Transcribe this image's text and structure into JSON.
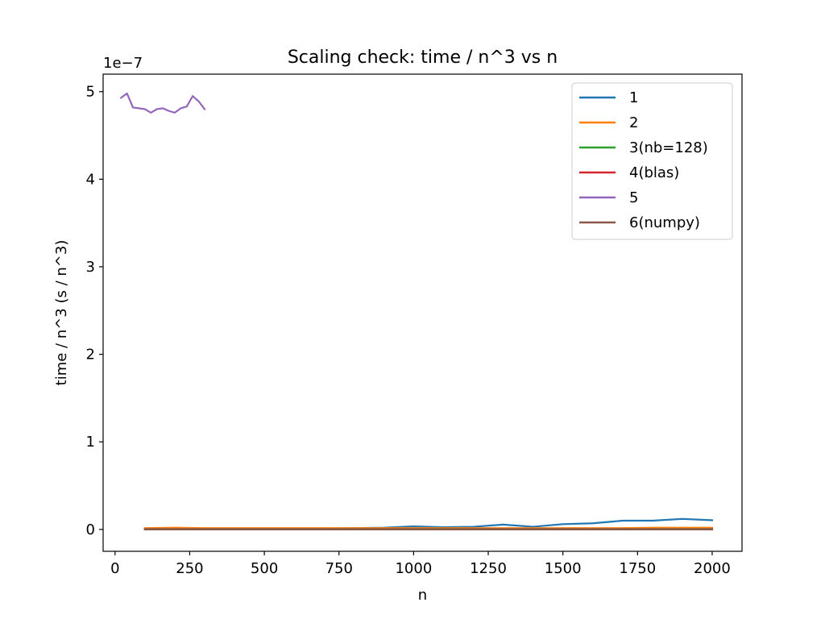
{
  "chart_data": {
    "type": "line",
    "title": "Scaling check: time / n^3 vs n",
    "xlabel": "n",
    "ylabel": "time / n^3 (s / n^3)",
    "offset_label": "1e−7",
    "y_scale_factor": 1e-07,
    "xlim": [
      -40,
      2100
    ],
    "ylim": [
      -2.5e-08,
      5.2e-07
    ],
    "x_ticks": [
      0,
      250,
      500,
      750,
      1000,
      1250,
      1500,
      1750,
      2000
    ],
    "x_tick_labels": [
      "0",
      "250",
      "500",
      "750",
      "1000",
      "1250",
      "1500",
      "1750",
      "2000"
    ],
    "y_ticks": [
      0,
      1e-07,
      2e-07,
      3e-07,
      4e-07,
      5e-07
    ],
    "y_tick_labels": [
      "0",
      "1",
      "2",
      "3",
      "4",
      "5"
    ],
    "grid": false,
    "legend_position": "top-right",
    "series": [
      {
        "name": "1",
        "color": "#1f77b4",
        "x": [
          100,
          200,
          300,
          400,
          500,
          600,
          700,
          800,
          900,
          1000,
          1100,
          1200,
          1300,
          1400,
          1500,
          1600,
          1700,
          1800,
          1900,
          2000
        ],
        "y": [
          1e-09,
          1e-09,
          1e-09,
          1e-09,
          1e-09,
          1e-09,
          1.2e-09,
          1.5e-09,
          2e-09,
          3.5e-09,
          2.5e-09,
          3e-09,
          5.5e-09,
          3e-09,
          6e-09,
          7e-09,
          1e-08,
          1e-08,
          1.2e-08,
          1.05e-08
        ]
      },
      {
        "name": "2",
        "color": "#ff7f0e",
        "x": [
          100,
          200,
          300,
          400,
          500,
          600,
          700,
          800,
          900,
          1000,
          1100,
          1200,
          1300,
          1400,
          1500,
          1600,
          1700,
          1800,
          1900,
          2000
        ],
        "y": [
          1.5e-09,
          2e-09,
          1.5e-09,
          1.5e-09,
          1.5e-09,
          1.5e-09,
          1.5e-09,
          1.5e-09,
          1.5e-09,
          1.5e-09,
          1.5e-09,
          1.5e-09,
          1.5e-09,
          1.5e-09,
          1.5e-09,
          1.5e-09,
          1.5e-09,
          2e-09,
          2e-09,
          2e-09
        ]
      },
      {
        "name": "3(nb=128)",
        "color": "#2ca02c",
        "x": [
          100,
          200,
          300,
          400,
          500,
          600,
          700,
          800,
          900,
          1000,
          1100,
          1200,
          1300,
          1400,
          1500,
          1600,
          1700,
          1800,
          1900,
          2000
        ],
        "y": [
          5e-10,
          5e-10,
          5e-10,
          5e-10,
          5e-10,
          5e-10,
          5e-10,
          5e-10,
          5e-10,
          5e-10,
          5e-10,
          5e-10,
          5e-10,
          5e-10,
          5e-10,
          5e-10,
          5e-10,
          5e-10,
          5e-10,
          5e-10
        ]
      },
      {
        "name": "4(blas)",
        "color": "#d62728",
        "x": [
          100,
          200,
          300,
          400,
          500,
          600,
          700,
          800,
          900,
          1000,
          1100,
          1200,
          1300,
          1400,
          1500,
          1600,
          1700,
          1800,
          1900,
          2000
        ],
        "y": [
          2e-10,
          2e-10,
          2e-10,
          2e-10,
          2e-10,
          2e-10,
          2e-10,
          2e-10,
          2e-10,
          2e-10,
          0.0,
          2e-10,
          2e-10,
          2e-10,
          2e-10,
          2e-10,
          2e-10,
          2e-10,
          2e-10,
          2e-10
        ]
      },
      {
        "name": "5",
        "color": "#9467bd",
        "x": [
          20,
          40,
          60,
          80,
          100,
          120,
          140,
          160,
          180,
          200,
          220,
          240,
          260,
          280,
          300
        ],
        "y": [
          4.93e-07,
          4.98e-07,
          4.82e-07,
          4.81e-07,
          4.8e-07,
          4.76e-07,
          4.8e-07,
          4.81e-07,
          4.78e-07,
          4.76e-07,
          4.81e-07,
          4.83e-07,
          4.95e-07,
          4.89e-07,
          4.8e-07
        ]
      },
      {
        "name": "6(numpy)",
        "color": "#8c564b",
        "x": [
          100,
          200,
          300,
          400,
          500,
          600,
          700,
          800,
          900,
          1000,
          1100,
          1200,
          1300,
          1400,
          1500,
          1600,
          1700,
          1800,
          1900,
          2000
        ],
        "y": [
          0.0,
          0.0,
          0.0,
          0.0,
          0.0,
          0.0,
          0.0,
          0.0,
          0.0,
          0.0,
          0.0,
          0.0,
          0.0,
          0.0,
          0.0,
          0.0,
          0.0,
          0.0,
          0.0,
          0.0
        ]
      }
    ]
  }
}
